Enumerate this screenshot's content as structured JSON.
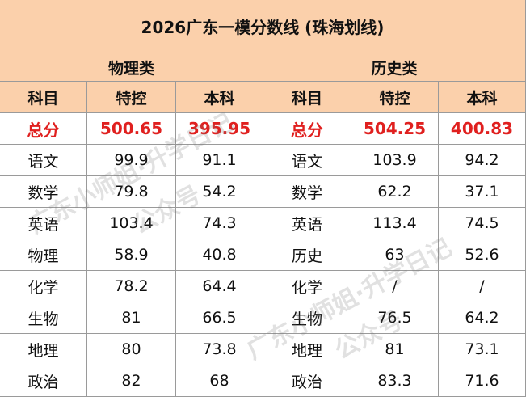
{
  "title": "2026广东一模分数线 (珠海划线)",
  "sections": [
    "物理类",
    "历史类"
  ],
  "columns": [
    "科目",
    "特控",
    "本科",
    "科目",
    "特控",
    "本科"
  ],
  "rows": [
    [
      "总分",
      "500.65",
      "395.95",
      "总分",
      "504.25",
      "400.83"
    ],
    [
      "语文",
      "99.9",
      "91.1",
      "语文",
      "103.9",
      "94.2"
    ],
    [
      "数学",
      "79.8",
      "54.2",
      "数学",
      "62.2",
      "37.1"
    ],
    [
      "英语",
      "103.4",
      "74.3",
      "英语",
      "113.4",
      "74.5"
    ],
    [
      "物理",
      "58.9",
      "40.8",
      "历史",
      "63",
      "52.6"
    ],
    [
      "化学",
      "78.2",
      "64.4",
      "化学",
      "/",
      "/"
    ],
    [
      "生物",
      "81",
      "66.5",
      "生物",
      "76.5",
      "64.2"
    ],
    [
      "地理",
      "80",
      "73.8",
      "地理",
      "81",
      "73.1"
    ],
    [
      "政治",
      "82",
      "68",
      "政治",
      "83.3",
      "71.6"
    ]
  ],
  "watermarks": [
    "广东小师姐·升学日记",
    "公众号",
    "广东小师姐·升学日记",
    "公众号"
  ]
}
